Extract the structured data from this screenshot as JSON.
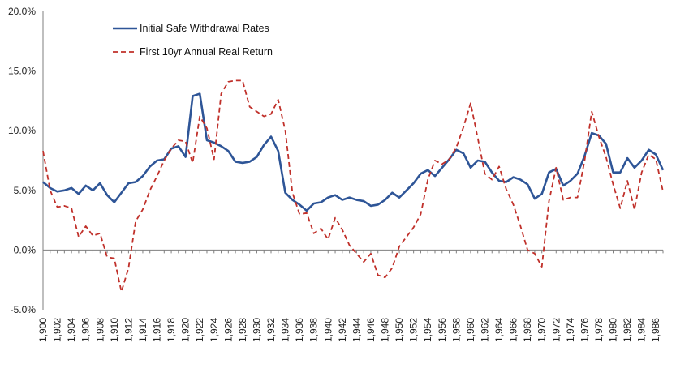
{
  "chart_data": {
    "type": "line",
    "title": "",
    "xlabel": "",
    "ylabel": "",
    "ylim": [
      -5,
      20
    ],
    "y_ticks": [
      "20.0%",
      "15.0%",
      "10.0%",
      "5.0%",
      "0.0%",
      "-5.0%"
    ],
    "x_tick_labels": [
      "1,900",
      "1,902",
      "1,904",
      "1,906",
      "1,908",
      "1,910",
      "1,912",
      "1,914",
      "1,916",
      "1,918",
      "1,920",
      "1,922",
      "1,924",
      "1,926",
      "1,928",
      "1,930",
      "1,932",
      "1,934",
      "1,936",
      "1,938",
      "1,940",
      "1,942",
      "1,944",
      "1,946",
      "1,948",
      "1,950",
      "1,952",
      "1,954",
      "1,956",
      "1,958",
      "1,960",
      "1,962",
      "1,964",
      "1,966",
      "1,968",
      "1,970",
      "1,972",
      "1,974",
      "1,976",
      "1,978",
      "1,980",
      "1,982",
      "1,984",
      "1,986"
    ],
    "x_start": 1900,
    "x_end": 1987,
    "grid": false,
    "legend_placement": "top-left",
    "series": [
      {
        "name": "Initial Safe Withdrawal Rates",
        "color": "#2e5597",
        "style": "solid",
        "values": [
          5.7,
          5.2,
          4.9,
          5.0,
          5.2,
          4.7,
          5.4,
          5.0,
          5.6,
          4.6,
          4.0,
          4.8,
          5.6,
          5.7,
          6.2,
          7.0,
          7.5,
          7.6,
          8.5,
          8.7,
          7.8,
          12.9,
          13.1,
          9.2,
          9.0,
          8.7,
          8.3,
          7.4,
          7.3,
          7.4,
          7.8,
          8.8,
          9.5,
          8.3,
          4.8,
          4.2,
          3.8,
          3.3,
          3.9,
          4.0,
          4.4,
          4.6,
          4.2,
          4.4,
          4.2,
          4.1,
          3.7,
          3.8,
          4.2,
          4.8,
          4.4,
          5.0,
          5.6,
          6.4,
          6.7,
          6.2,
          6.9,
          7.6,
          8.4,
          8.1,
          6.9,
          7.5,
          7.4,
          6.5,
          5.8,
          5.7,
          6.1,
          5.9,
          5.5,
          4.3,
          4.7,
          6.5,
          6.8,
          5.4,
          5.8,
          6.4,
          7.9,
          9.8,
          9.6,
          8.9,
          6.5,
          6.5,
          7.7,
          6.9,
          7.5,
          8.4,
          8.0,
          6.7
        ]
      },
      {
        "name": "First 10yr Annual Real Return",
        "color": "#c0302a",
        "style": "dashed",
        "values": [
          8.3,
          5.0,
          3.6,
          3.7,
          3.5,
          1.1,
          2.0,
          1.2,
          1.4,
          -0.6,
          -0.7,
          -3.5,
          -1.5,
          2.4,
          3.4,
          5.0,
          6.2,
          7.5,
          8.5,
          9.2,
          9.1,
          7.3,
          11.2,
          10.2,
          7.6,
          13.1,
          14.1,
          14.2,
          14.2,
          12.0,
          11.6,
          11.2,
          11.4,
          12.6,
          10.0,
          4.8,
          3.0,
          3.1,
          1.4,
          1.8,
          0.9,
          2.7,
          1.7,
          0.4,
          -0.3,
          -1.0,
          -0.3,
          -2.1,
          -2.3,
          -1.5,
          0.3,
          1.1,
          1.9,
          3.0,
          5.9,
          7.5,
          7.2,
          7.6,
          8.6,
          10.3,
          12.3,
          9.4,
          6.4,
          5.9,
          7.0,
          5.1,
          3.8,
          2.0,
          0.0,
          -0.3,
          -1.4,
          4.1,
          6.9,
          4.2,
          4.4,
          4.4,
          7.5,
          11.6,
          9.5,
          7.8,
          5.5,
          3.5,
          5.8,
          3.4,
          6.5,
          8.0,
          7.6,
          4.9
        ]
      }
    ]
  }
}
